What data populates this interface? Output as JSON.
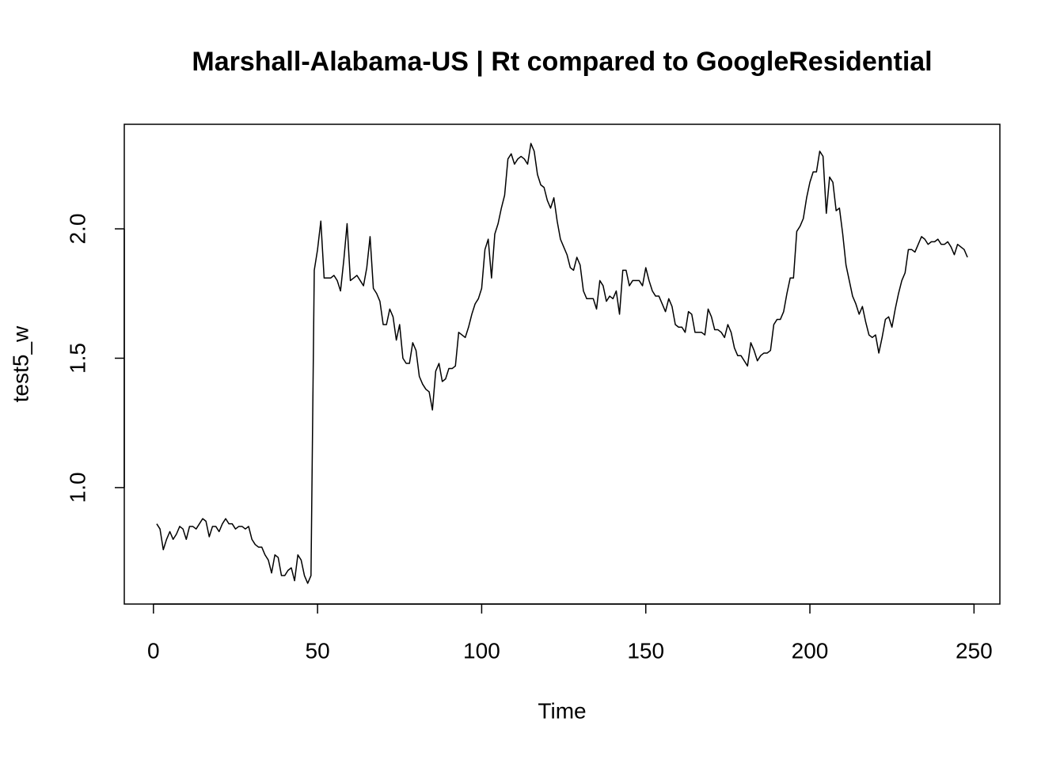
{
  "chart_data": {
    "type": "line",
    "title": "Marshall-Alabama-US | Rt compared to GoogleResidential",
    "xlabel": "Time",
    "ylabel": "test5_w",
    "color": "#000000",
    "x": [
      1,
      2,
      3,
      4,
      5,
      6,
      7,
      8,
      9,
      10,
      11,
      12,
      13,
      14,
      15,
      16,
      17,
      18,
      19,
      20,
      21,
      22,
      23,
      24,
      25,
      26,
      27,
      28,
      29,
      30,
      31,
      32,
      33,
      34,
      35,
      36,
      37,
      38,
      39,
      40,
      41,
      42,
      43,
      44,
      45,
      46,
      47,
      48,
      49,
      50,
      51,
      52,
      53,
      54,
      55,
      56,
      57,
      58,
      59,
      60,
      61,
      62,
      63,
      64,
      65,
      66,
      67,
      68,
      69,
      70,
      71,
      72,
      73,
      74,
      75,
      76,
      77,
      78,
      79,
      80,
      81,
      82,
      83,
      84,
      85,
      86,
      87,
      88,
      89,
      90,
      91,
      92,
      93,
      94,
      95,
      96,
      97,
      98,
      99,
      100,
      101,
      102,
      103,
      104,
      105,
      106,
      107,
      108,
      109,
      110,
      111,
      112,
      113,
      114,
      115,
      116,
      117,
      118,
      119,
      120,
      121,
      122,
      123,
      124,
      125,
      126,
      127,
      128,
      129,
      130,
      131,
      132,
      133,
      134,
      135,
      136,
      137,
      138,
      139,
      140,
      141,
      142,
      143,
      144,
      145,
      146,
      147,
      148,
      149,
      150,
      151,
      152,
      153,
      154,
      155,
      156,
      157,
      158,
      159,
      160,
      161,
      162,
      163,
      164,
      165,
      166,
      167,
      168,
      169,
      170,
      171,
      172,
      173,
      174,
      175,
      176,
      177,
      178,
      179,
      180,
      181,
      182,
      183,
      184,
      185,
      186,
      187,
      188,
      189,
      190,
      191,
      192,
      193,
      194,
      195,
      196,
      197,
      198,
      199,
      200,
      201,
      202,
      203,
      204,
      205,
      206,
      207,
      208,
      209,
      210,
      211,
      212,
      213,
      214,
      215,
      216,
      217,
      218,
      219,
      220,
      221,
      222,
      223,
      224,
      225,
      226,
      227,
      228,
      229,
      230,
      231,
      232,
      233,
      234,
      235,
      236,
      237,
      238,
      239,
      240,
      241,
      242,
      243,
      244,
      245,
      246,
      247,
      248
    ],
    "values": [
      0.86,
      0.84,
      0.76,
      0.8,
      0.83,
      0.8,
      0.82,
      0.85,
      0.84,
      0.8,
      0.85,
      0.85,
      0.84,
      0.86,
      0.88,
      0.87,
      0.81,
      0.85,
      0.85,
      0.83,
      0.86,
      0.88,
      0.86,
      0.86,
      0.84,
      0.85,
      0.85,
      0.84,
      0.85,
      0.8,
      0.78,
      0.77,
      0.77,
      0.74,
      0.72,
      0.67,
      0.74,
      0.73,
      0.66,
      0.66,
      0.68,
      0.69,
      0.64,
      0.74,
      0.72,
      0.66,
      0.63,
      0.66,
      1.84,
      1.92,
      2.03,
      1.81,
      1.81,
      1.81,
      1.82,
      1.8,
      1.76,
      1.88,
      2.02,
      1.8,
      1.81,
      1.82,
      1.8,
      1.78,
      1.85,
      1.97,
      1.77,
      1.75,
      1.72,
      1.63,
      1.63,
      1.69,
      1.66,
      1.57,
      1.63,
      1.5,
      1.48,
      1.48,
      1.56,
      1.53,
      1.43,
      1.4,
      1.38,
      1.37,
      1.3,
      1.45,
      1.48,
      1.41,
      1.42,
      1.46,
      1.46,
      1.47,
      1.6,
      1.59,
      1.58,
      1.62,
      1.67,
      1.71,
      1.73,
      1.77,
      1.92,
      1.96,
      1.81,
      1.98,
      2.02,
      2.08,
      2.13,
      2.27,
      2.29,
      2.25,
      2.27,
      2.28,
      2.27,
      2.25,
      2.33,
      2.3,
      2.21,
      2.17,
      2.16,
      2.11,
      2.08,
      2.12,
      2.03,
      1.96,
      1.93,
      1.9,
      1.85,
      1.84,
      1.89,
      1.86,
      1.76,
      1.73,
      1.73,
      1.73,
      1.69,
      1.8,
      1.78,
      1.72,
      1.74,
      1.73,
      1.76,
      1.67,
      1.84,
      1.84,
      1.78,
      1.8,
      1.8,
      1.8,
      1.78,
      1.85,
      1.8,
      1.76,
      1.74,
      1.74,
      1.71,
      1.68,
      1.73,
      1.7,
      1.63,
      1.62,
      1.62,
      1.6,
      1.68,
      1.67,
      1.6,
      1.6,
      1.6,
      1.59,
      1.69,
      1.66,
      1.61,
      1.61,
      1.6,
      1.58,
      1.63,
      1.6,
      1.54,
      1.51,
      1.51,
      1.49,
      1.47,
      1.56,
      1.53,
      1.49,
      1.51,
      1.52,
      1.52,
      1.53,
      1.63,
      1.65,
      1.65,
      1.68,
      1.75,
      1.81,
      1.81,
      1.99,
      2.01,
      2.04,
      2.12,
      2.18,
      2.22,
      2.22,
      2.3,
      2.28,
      2.06,
      2.2,
      2.18,
      2.07,
      2.08,
      1.98,
      1.86,
      1.8,
      1.74,
      1.71,
      1.67,
      1.7,
      1.64,
      1.59,
      1.58,
      1.59,
      1.52,
      1.58,
      1.65,
      1.66,
      1.62,
      1.69,
      1.75,
      1.8,
      1.83,
      1.92,
      1.92,
      1.91,
      1.94,
      1.97,
      1.96,
      1.94,
      1.95,
      1.95,
      1.96,
      1.94,
      1.94,
      1.95,
      1.93,
      1.9,
      1.94,
      1.93,
      1.92,
      1.89
    ],
    "xlim": [
      -8.88,
      257.88
    ],
    "ylim": [
      0.55,
      2.404
    ],
    "xticks": [
      0,
      50,
      100,
      150,
      200,
      250
    ],
    "yticks": [
      {
        "value": 1.0,
        "label": "1.0"
      },
      {
        "value": 1.5,
        "label": "1.5"
      },
      {
        "value": 2.0,
        "label": "2.0"
      }
    ]
  }
}
